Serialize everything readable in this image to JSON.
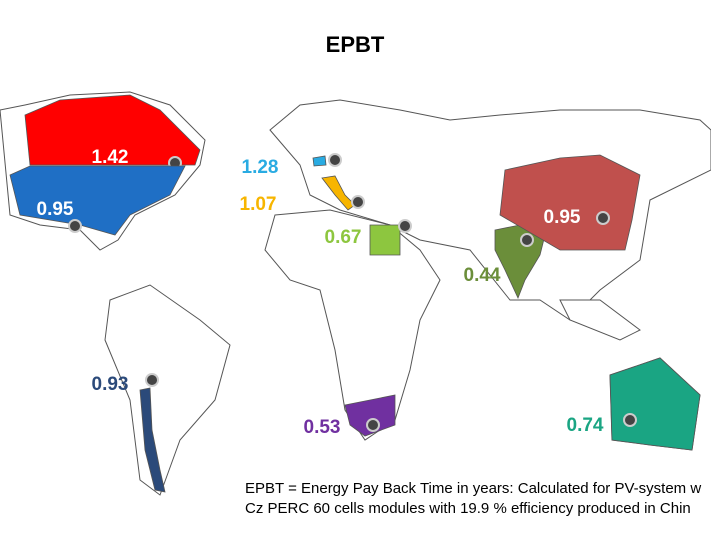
{
  "title": "EPBT",
  "regions": [
    {
      "name": "Canada",
      "value": 1.42,
      "color": "#ff0000",
      "label_color": "#ffffff"
    },
    {
      "name": "USA",
      "value": 0.95,
      "color": "#1f6fc5",
      "label_color": "#ffffff"
    },
    {
      "name": "Switzerland",
      "value": 1.28,
      "color": "#29abe2",
      "label_color": "#29abe2"
    },
    {
      "name": "Italy",
      "value": 1.07,
      "color": "#f7b500",
      "label_color": "#f7b500"
    },
    {
      "name": "Egypt",
      "value": 0.67,
      "color": "#8dc63f",
      "label_color": "#8dc63f"
    },
    {
      "name": "India",
      "value": 0.44,
      "color": "#6b8e3a",
      "label_color": "#6b8e3a"
    },
    {
      "name": "China",
      "value": 0.95,
      "color": "#c0504d",
      "label_color": "#ffffff"
    },
    {
      "name": "Chile",
      "value": 0.93,
      "color": "#2b4a7a",
      "label_color": "#2b4a7a"
    },
    {
      "name": "South Africa",
      "value": 0.53,
      "color": "#7030a0",
      "label_color": "#7030a0"
    },
    {
      "name": "Australia",
      "value": 0.74,
      "color": "#1aa583",
      "label_color": "#1aa583"
    }
  ],
  "footnote": [
    "EPBT = Energy Pay Back Time in years: Calculated for PV-system w",
    "Cz PERC 60 cells modules with 19.9 % efficiency produced in Chin"
  ]
}
